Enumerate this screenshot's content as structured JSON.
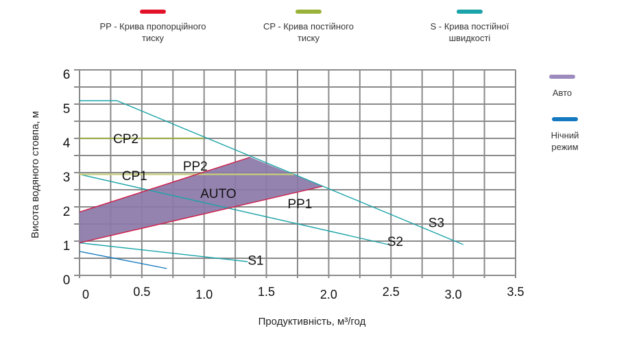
{
  "legend_top": [
    {
      "key": "pp",
      "line1": "PP -  Крива пропорційного",
      "line2": "тиску",
      "color": "#e3122b"
    },
    {
      "key": "cp",
      "line1": "CP - Крива постійного",
      "line2": "тиску",
      "color": "#99b33a"
    },
    {
      "key": "s",
      "line1": "S - Крива постійної",
      "line2": "швидкості",
      "color": "#1aa3a8"
    }
  ],
  "legend_side": [
    {
      "key": "auto",
      "line1": "Авто",
      "line2": "",
      "color": "#9d8bbd"
    },
    {
      "key": "night",
      "line1": "Нічний",
      "line2": "режим",
      "color": "#1479c0"
    }
  ],
  "chart_data": {
    "type": "line",
    "title": "",
    "xlabel": "Продуктивність, м³/год",
    "ylabel": "Висота водяного стовпа, м",
    "xlim": [
      0,
      3.5
    ],
    "ylim": [
      0,
      6
    ],
    "grid": true,
    "x_grid_step": 0.25,
    "y_grid_step": 0.5,
    "x_ticks": [
      "0",
      "0.5",
      "1.0",
      "1.5",
      "2.0",
      "2.5",
      "3.0",
      "3.5"
    ],
    "y_ticks": [
      "0",
      "1",
      "2",
      "3",
      "4",
      "5",
      "6"
    ],
    "series": [
      {
        "name": "S3",
        "group": "S",
        "color": "#1aa3a8",
        "points": [
          [
            0,
            5.1
          ],
          [
            0.3,
            5.1
          ],
          [
            3.08,
            0.9
          ]
        ]
      },
      {
        "name": "S2",
        "group": "S",
        "color": "#1aa3a8",
        "points": [
          [
            0,
            2.95
          ],
          [
            2.48,
            0.9
          ]
        ]
      },
      {
        "name": "S1",
        "group": "S",
        "color": "#1aa3a8",
        "points": [
          [
            0,
            0.95
          ],
          [
            1.35,
            0.4
          ]
        ]
      },
      {
        "name": "Night",
        "group": "Нічний режим",
        "color": "#1479c0",
        "points": [
          [
            0,
            0.7
          ],
          [
            0.7,
            0.2
          ]
        ]
      },
      {
        "name": "CP2",
        "group": "CP",
        "color": "#99a84a",
        "points": [
          [
            0,
            4.0
          ],
          [
            1.0,
            4.0
          ]
        ]
      },
      {
        "name": "CP1",
        "group": "CP",
        "color": "#c8cf7a",
        "points": [
          [
            0,
            2.95
          ],
          [
            1.72,
            2.95
          ]
        ]
      },
      {
        "name": "PP2",
        "group": "PP",
        "color": "#d01a45",
        "points": [
          [
            0,
            1.85
          ],
          [
            1.37,
            3.45
          ]
        ]
      },
      {
        "name": "PP1",
        "group": "PP",
        "color": "#d01a45",
        "points": [
          [
            0,
            0.95
          ],
          [
            1.95,
            2.6
          ]
        ]
      }
    ],
    "area": {
      "name": "AUTO",
      "color": "#8b78a8",
      "points": [
        [
          0,
          1.85
        ],
        [
          1.37,
          3.45
        ],
        [
          1.95,
          2.6
        ],
        [
          0,
          0.95
        ]
      ]
    },
    "annotations": [
      {
        "text": "CP2",
        "x": 0.27,
        "y": 4.0
      },
      {
        "text": "CP1",
        "x": 0.34,
        "y": 2.92
      },
      {
        "text": "PP2",
        "x": 0.83,
        "y": 3.2
      },
      {
        "text": "AUTO",
        "x": 0.97,
        "y": 2.4
      },
      {
        "text": "PP1",
        "x": 1.67,
        "y": 2.1
      },
      {
        "text": "S1",
        "x": 1.35,
        "y": 0.45
      },
      {
        "text": "S2",
        "x": 2.47,
        "y": 1.0
      },
      {
        "text": "S3",
        "x": 2.8,
        "y": 1.55
      }
    ]
  }
}
